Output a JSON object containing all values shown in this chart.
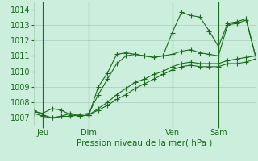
{
  "background_color": "#cceedd",
  "grid_color": "#aaccbb",
  "line_color": "#1a6b1a",
  "marker": "+",
  "marker_size": 4,
  "xlabel": "Pression niveau de la mer( hPa )",
  "ylim": [
    1006.5,
    1014.5
  ],
  "yticks": [
    1007,
    1008,
    1009,
    1010,
    1011,
    1012,
    1013,
    1014
  ],
  "xlim": [
    0,
    96
  ],
  "xtick_positions": [
    4,
    24,
    60,
    80
  ],
  "xtick_labels": [
    "Jeu",
    "Dim",
    "Ven",
    "Sam"
  ],
  "vlines": [
    4,
    24,
    60,
    80
  ],
  "lines": [
    {
      "x": [
        0,
        4,
        8,
        12,
        16,
        20,
        24,
        28,
        32,
        36,
        40,
        44,
        48,
        52,
        56,
        60,
        64,
        68,
        72,
        76,
        80,
        84,
        88,
        92,
        96
      ],
      "y": [
        1007.4,
        1007.3,
        1007.6,
        1007.5,
        1007.2,
        1007.1,
        1007.2,
        1009.0,
        1009.9,
        1011.1,
        1011.2,
        1011.1,
        1011.0,
        1010.9,
        1011.0,
        1012.5,
        1013.8,
        1013.6,
        1013.5,
        1012.6,
        1011.6,
        1013.1,
        1013.2,
        1013.4,
        1011.0
      ]
    },
    {
      "x": [
        0,
        4,
        8,
        12,
        16,
        20,
        24,
        28,
        32,
        36,
        40,
        44,
        48,
        52,
        56,
        60,
        64,
        68,
        72,
        76,
        80,
        84,
        88,
        92,
        96
      ],
      "y": [
        1007.3,
        1007.1,
        1007.0,
        1007.1,
        1007.1,
        1007.2,
        1007.3,
        1008.5,
        1009.5,
        1010.5,
        1011.0,
        1011.1,
        1011.0,
        1010.9,
        1011.0,
        1011.1,
        1011.3,
        1011.4,
        1011.2,
        1011.1,
        1011.0,
        1013.0,
        1013.1,
        1013.3,
        1011.0
      ]
    },
    {
      "x": [
        24,
        28,
        32,
        36,
        40,
        44,
        48,
        52,
        56,
        60,
        64,
        68,
        72,
        76,
        80,
        84,
        88,
        92,
        96
      ],
      "y": [
        1007.2,
        1007.6,
        1008.0,
        1008.5,
        1008.9,
        1009.3,
        1009.5,
        1009.8,
        1010.0,
        1010.3,
        1010.5,
        1010.6,
        1010.5,
        1010.5,
        1010.5,
        1010.7,
        1010.8,
        1010.9,
        1011.0
      ]
    },
    {
      "x": [
        24,
        28,
        32,
        36,
        40,
        44,
        48,
        52,
        56,
        60,
        64,
        68,
        72,
        76,
        80,
        84,
        88,
        92,
        96
      ],
      "y": [
        1007.2,
        1007.5,
        1007.8,
        1008.2,
        1008.5,
        1008.9,
        1009.2,
        1009.5,
        1009.8,
        1010.1,
        1010.3,
        1010.4,
        1010.3,
        1010.3,
        1010.3,
        1010.5,
        1010.5,
        1010.6,
        1010.8
      ]
    },
    {
      "x": [
        0,
        4,
        8,
        12,
        16,
        20,
        24
      ],
      "y": [
        1007.5,
        1007.2,
        1007.0,
        1007.1,
        1007.3,
        1007.1,
        1007.2
      ]
    }
  ]
}
